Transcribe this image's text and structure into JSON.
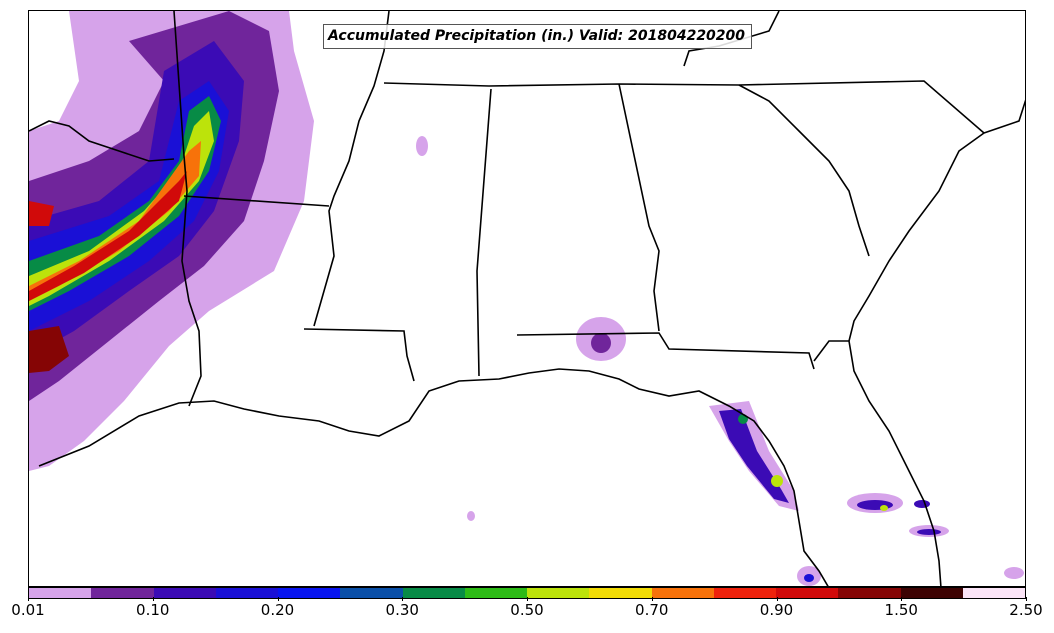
{
  "map": {
    "title": "Accumulated Precipitation (in.) Valid: 201804220200",
    "variable": "Accumulated Precipitation",
    "units": "in.",
    "valid_time": "201804220200",
    "region": "Southeastern United States",
    "colorbar": {
      "colors": [
        "#d6a3ea",
        "#70259b",
        "#3b0bb5",
        "#1a10d6",
        "#0815f0",
        "#0a4fa8",
        "#078b46",
        "#2dbb16",
        "#bce30b",
        "#f2dc06",
        "#f7720a",
        "#ee220c",
        "#d10a0a",
        "#850505",
        "#3d0303",
        "#fbe4f7"
      ],
      "tick_labels": [
        "0.01",
        "0.10",
        "0.20",
        "0.30",
        "0.50",
        "0.70",
        "0.90",
        "1.50",
        "2.50"
      ],
      "tick_values": [
        0.01,
        0.1,
        0.2,
        0.3,
        0.5,
        0.7,
        0.9,
        1.5,
        2.5
      ]
    }
  }
}
